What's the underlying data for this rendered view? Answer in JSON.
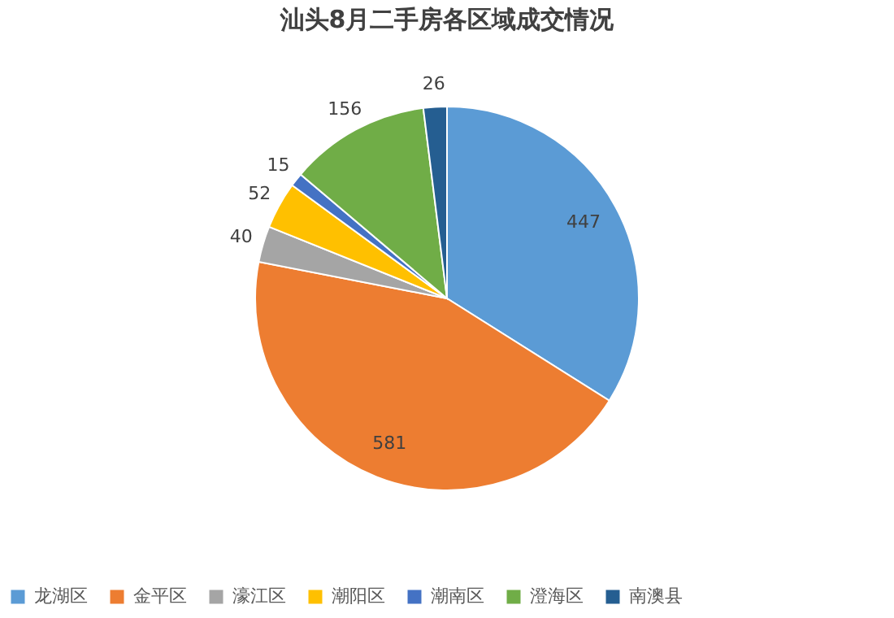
{
  "chart_data": {
    "type": "pie",
    "title": "汕头8月二手房各区域成交情况",
    "categories": [
      "龙湖区",
      "金平区",
      "濠江区",
      "潮阳区",
      "潮南区",
      "澄海区",
      "南澳县"
    ],
    "values": [
      447,
      581,
      40,
      52,
      15,
      156,
      26
    ],
    "colors": [
      "#5b9bd5",
      "#ed7d31",
      "#a5a5a5",
      "#ffc000",
      "#4472c4",
      "#70ad47",
      "#255e91"
    ],
    "data_labels": true,
    "legend": "bottom"
  }
}
